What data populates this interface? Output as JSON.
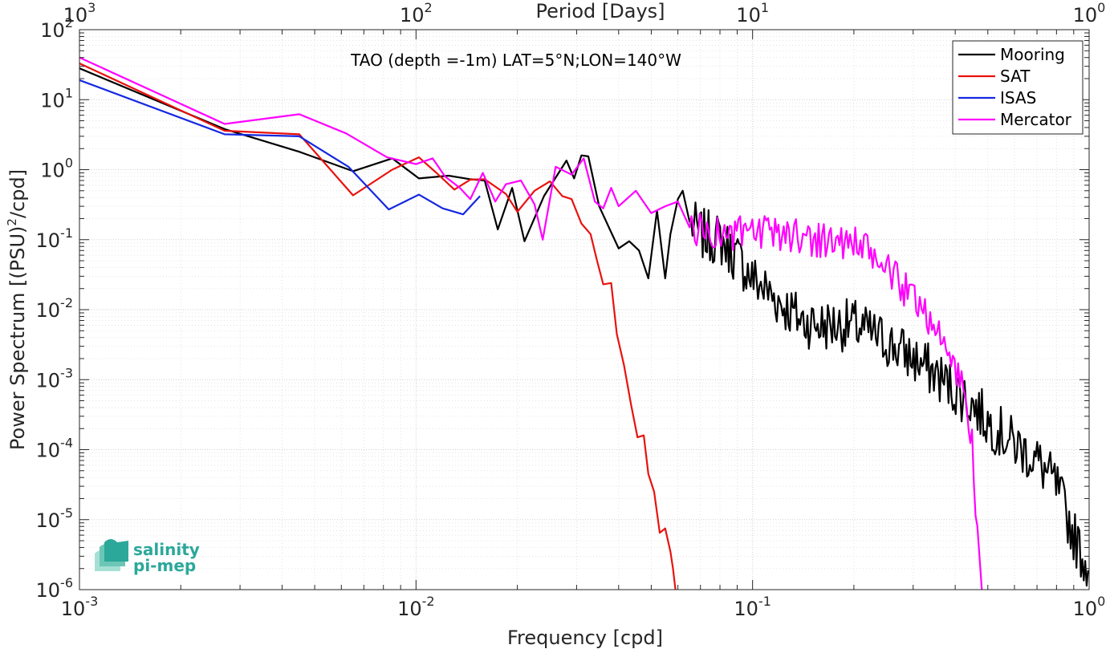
{
  "chart_data": {
    "type": "line",
    "title": "TAO (depth =-1m) LAT=5°N;LON=140°W",
    "xlabel": "Frequency [cpd]",
    "ylabel": "Power Spectrum [(PSU)",
    "ylabel_sup": "2",
    "ylabel_tail": "/cpd]",
    "top_xlabel": "Period [Days]",
    "xscale": "log",
    "yscale": "log",
    "xlim": [
      0.001,
      1
    ],
    "ylim": [
      1e-06,
      100
    ],
    "grid": true,
    "legend_position": "top-right",
    "x_ticks": [
      {
        "value": 0.001,
        "base": "10",
        "exp": "-3"
      },
      {
        "value": 0.01,
        "base": "10",
        "exp": "-2"
      },
      {
        "value": 0.1,
        "base": "10",
        "exp": "-1"
      },
      {
        "value": 1,
        "base": "10",
        "exp": "0"
      }
    ],
    "top_ticks": [
      {
        "value": 0.001,
        "base": "10",
        "exp": "3"
      },
      {
        "value": 0.01,
        "base": "10",
        "exp": "2"
      },
      {
        "value": 0.1,
        "base": "10",
        "exp": "1"
      },
      {
        "value": 1,
        "base": "10",
        "exp": "0"
      }
    ],
    "y_ticks": [
      {
        "value": 100,
        "base": "10",
        "exp": "2"
      },
      {
        "value": 10,
        "base": "10",
        "exp": "1"
      },
      {
        "value": 1,
        "base": "10",
        "exp": "0"
      },
      {
        "value": 0.1,
        "base": "10",
        "exp": "-1"
      },
      {
        "value": 0.01,
        "base": "10",
        "exp": "-2"
      },
      {
        "value": 0.001,
        "base": "10",
        "exp": "-3"
      },
      {
        "value": 0.0001,
        "base": "10",
        "exp": "-4"
      },
      {
        "value": 1e-05,
        "base": "10",
        "exp": "-5"
      },
      {
        "value": 1e-06,
        "base": "10",
        "exp": "-6"
      }
    ],
    "series": [
      {
        "name": "Mooring",
        "color": "#000000",
        "noise": {
          "x_from": 0.065,
          "x_to": 1.0,
          "step": 1.01,
          "amp": 0.38,
          "seed": 7
        },
        "points": [
          [
            0.001,
            28
          ],
          [
            0.0027,
            3.8
          ],
          [
            0.0045,
            1.8
          ],
          [
            0.0065,
            0.95
          ],
          [
            0.0085,
            1.45
          ],
          [
            0.0102,
            0.75
          ],
          [
            0.0125,
            0.82
          ],
          [
            0.0145,
            0.73
          ],
          [
            0.016,
            0.7
          ],
          [
            0.0175,
            0.14
          ],
          [
            0.0193,
            0.55
          ],
          [
            0.021,
            0.095
          ],
          [
            0.024,
            0.42
          ],
          [
            0.028,
            1.35
          ],
          [
            0.0295,
            0.75
          ],
          [
            0.031,
            1.6
          ],
          [
            0.0325,
            1.55
          ],
          [
            0.035,
            0.3
          ],
          [
            0.04,
            0.075
          ],
          [
            0.043,
            0.095
          ],
          [
            0.046,
            0.07
          ],
          [
            0.049,
            0.028
          ],
          [
            0.052,
            0.26
          ],
          [
            0.055,
            0.028
          ],
          [
            0.057,
            0.12
          ],
          [
            0.06,
            0.38
          ],
          [
            0.062,
            0.5
          ],
          [
            0.065,
            0.18
          ],
          [
            0.07,
            0.12
          ],
          [
            0.08,
            0.1
          ],
          [
            0.09,
            0.055
          ],
          [
            0.1,
            0.028
          ],
          [
            0.12,
            0.013
          ],
          [
            0.14,
            0.007
          ],
          [
            0.16,
            0.006
          ],
          [
            0.2,
            0.006
          ],
          [
            0.25,
            0.0035
          ],
          [
            0.3,
            0.002
          ],
          [
            0.35,
            0.0012
          ],
          [
            0.4,
            0.0007
          ],
          [
            0.45,
            0.00045
          ],
          [
            0.5,
            0.00025
          ],
          [
            0.6,
            0.00012
          ],
          [
            0.7,
            7e-05
          ],
          [
            0.8,
            3e-05
          ],
          [
            0.9,
            6e-06
          ],
          [
            0.97,
            2.5e-06
          ]
        ]
      },
      {
        "name": "SAT",
        "color": "#e8120f",
        "noise": null,
        "points": [
          [
            0.001,
            33
          ],
          [
            0.0027,
            3.6
          ],
          [
            0.0045,
            3.2
          ],
          [
            0.0065,
            0.43
          ],
          [
            0.0085,
            1.0
          ],
          [
            0.0102,
            1.5
          ],
          [
            0.0115,
            0.9
          ],
          [
            0.013,
            0.52
          ],
          [
            0.0145,
            0.72
          ],
          [
            0.016,
            0.73
          ],
          [
            0.0185,
            0.45
          ],
          [
            0.02,
            0.25
          ],
          [
            0.0225,
            0.5
          ],
          [
            0.025,
            0.68
          ],
          [
            0.0272,
            0.42
          ],
          [
            0.029,
            0.38
          ],
          [
            0.031,
            0.17
          ],
          [
            0.033,
            0.12
          ],
          [
            0.0345,
            0.05
          ],
          [
            0.036,
            0.023
          ],
          [
            0.038,
            0.024
          ],
          [
            0.0395,
            0.0045
          ],
          [
            0.0415,
            0.0016
          ],
          [
            0.0435,
            0.00045
          ],
          [
            0.0455,
            0.00015
          ],
          [
            0.0475,
            0.00016
          ],
          [
            0.049,
            4.5e-05
          ],
          [
            0.051,
            2.5e-05
          ],
          [
            0.053,
            6.5e-06
          ],
          [
            0.055,
            7.5e-06
          ],
          [
            0.057,
            3.5e-06
          ],
          [
            0.058,
            2e-06
          ],
          [
            0.059,
            1e-06
          ]
        ]
      },
      {
        "name": "ISAS",
        "color": "#1528e0",
        "noise": null,
        "points": [
          [
            0.001,
            19
          ],
          [
            0.0027,
            3.2
          ],
          [
            0.0045,
            3.0
          ],
          [
            0.0063,
            1.1
          ],
          [
            0.0083,
            0.27
          ],
          [
            0.0102,
            0.44
          ],
          [
            0.012,
            0.28
          ],
          [
            0.0138,
            0.23
          ],
          [
            0.0155,
            0.42
          ]
        ]
      },
      {
        "name": "Mercator",
        "color": "#ff00ff",
        "noise": {
          "x_from": 0.065,
          "x_to": 0.47,
          "step": 1.012,
          "amp": 0.26,
          "seed": 23
        },
        "points": [
          [
            0.001,
            40
          ],
          [
            0.0027,
            4.5
          ],
          [
            0.0045,
            6.2
          ],
          [
            0.0062,
            3.3
          ],
          [
            0.0082,
            1.5
          ],
          [
            0.01,
            1.2
          ],
          [
            0.0112,
            1.45
          ],
          [
            0.0122,
            0.8
          ],
          [
            0.0135,
            0.55
          ],
          [
            0.0145,
            0.38
          ],
          [
            0.0158,
            0.9
          ],
          [
            0.0172,
            0.35
          ],
          [
            0.0185,
            0.62
          ],
          [
            0.0205,
            0.7
          ],
          [
            0.0225,
            0.32
          ],
          [
            0.0238,
            0.1
          ],
          [
            0.026,
            1.1
          ],
          [
            0.029,
            0.85
          ],
          [
            0.0315,
            1.45
          ],
          [
            0.034,
            0.35
          ],
          [
            0.036,
            0.28
          ],
          [
            0.038,
            0.55
          ],
          [
            0.04,
            0.3
          ],
          [
            0.045,
            0.5
          ],
          [
            0.05,
            0.24
          ],
          [
            0.055,
            0.3
          ],
          [
            0.06,
            0.35
          ],
          [
            0.065,
            0.15
          ],
          [
            0.08,
            0.12
          ],
          [
            0.1,
            0.12
          ],
          [
            0.13,
            0.12
          ],
          [
            0.16,
            0.1
          ],
          [
            0.2,
            0.09
          ],
          [
            0.25,
            0.04
          ],
          [
            0.28,
            0.02
          ],
          [
            0.32,
            0.012
          ],
          [
            0.37,
            0.003
          ],
          [
            0.4,
            0.0015
          ],
          [
            0.43,
            0.0006
          ],
          [
            0.45,
            0.0001
          ],
          [
            0.46,
            1.5e-05
          ],
          [
            0.47,
            3e-06
          ],
          [
            0.48,
            1e-06
          ]
        ]
      }
    ]
  },
  "logo": {
    "line1": "salinity",
    "line2": "pi-mep"
  }
}
